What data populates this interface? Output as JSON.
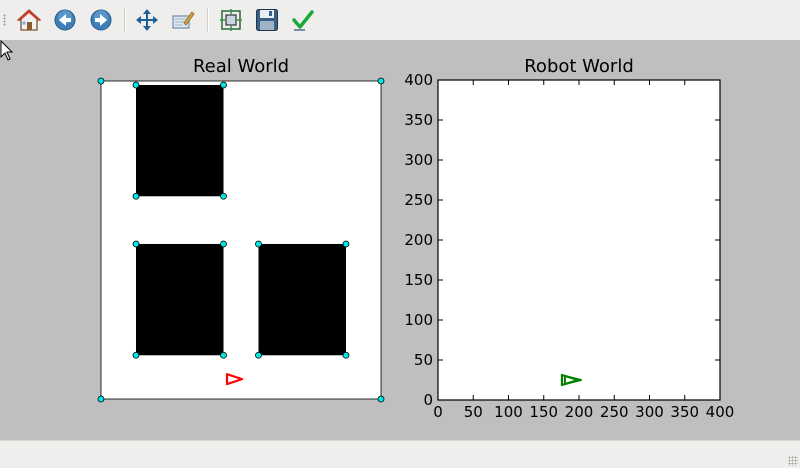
{
  "toolbar": {
    "tools": [
      {
        "name": "home-icon",
        "tooltip": "Reset original view"
      },
      {
        "name": "back-icon",
        "tooltip": "Back to previous view"
      },
      {
        "name": "forward-icon",
        "tooltip": "Forward to next view"
      },
      {
        "name": "pan-icon",
        "tooltip": "Pan axes"
      },
      {
        "name": "zoom-icon",
        "tooltip": "Zoom to rectangle"
      },
      {
        "name": "subplots-icon",
        "tooltip": "Configure subplots"
      },
      {
        "name": "save-icon",
        "tooltip": "Save the figure"
      },
      {
        "name": "edit-parameters-icon",
        "tooltip": "Edit axis parameters"
      }
    ]
  },
  "colors": {
    "figure_bg": "#bfbfbf",
    "obstacle": "#000000",
    "vertex": "#00e5e5",
    "robot_real": "#ff0000",
    "robot_world": "#008000"
  },
  "chart_data": [
    {
      "type": "scatter",
      "title": "Real World",
      "ticks_visible": false,
      "world_size": [
        400,
        400
      ],
      "obstacles": [
        {
          "x": [
            50,
            175
          ],
          "y": [
            255,
            395
          ]
        },
        {
          "x": [
            50,
            175
          ],
          "y": [
            55,
            195
          ]
        },
        {
          "x": [
            225,
            350
          ],
          "y": [
            55,
            195
          ]
        }
      ],
      "robot": {
        "x": 190,
        "y": 25,
        "heading": "right"
      }
    },
    {
      "type": "scatter",
      "title": "Robot World",
      "xlim": [
        0,
        400
      ],
      "ylim": [
        0,
        400
      ],
      "xticks": [
        "0",
        "50",
        "100",
        "150",
        "200",
        "250",
        "300",
        "350",
        "400"
      ],
      "yticks": [
        "0",
        "50",
        "100",
        "150",
        "200",
        "250",
        "300",
        "350",
        "400"
      ],
      "grid": false,
      "robot": {
        "x": 190,
        "y": 25,
        "heading": "right"
      }
    }
  ],
  "statusbar": {
    "message": ""
  }
}
